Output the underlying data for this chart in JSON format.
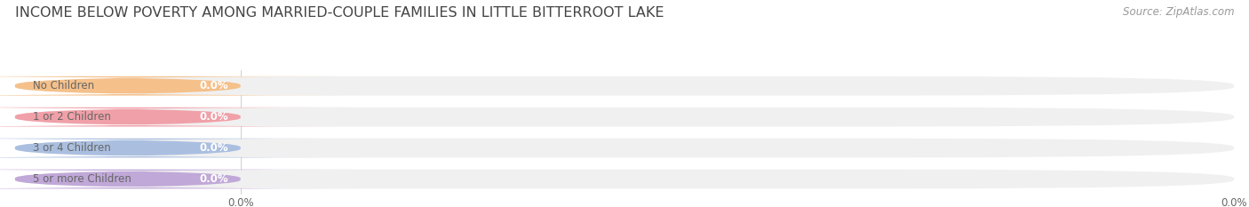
{
  "title": "INCOME BELOW POVERTY AMONG MARRIED-COUPLE FAMILIES IN LITTLE BITTERROOT LAKE",
  "source": "Source: ZipAtlas.com",
  "categories": [
    "No Children",
    "1 or 2 Children",
    "3 or 4 Children",
    "5 or more Children"
  ],
  "values": [
    0.0,
    0.0,
    0.0,
    0.0
  ],
  "bar_colors": [
    "#f5c08a",
    "#f0a0a8",
    "#aabfe0",
    "#c0a8d8"
  ],
  "bar_bg_color": "#f0f0f0",
  "text_color": "#666666",
  "title_color": "#444444",
  "source_color": "#999999",
  "value_label_color": "#ffffff",
  "background_color": "#ffffff",
  "bar_height": 0.62,
  "fig_width": 14.06,
  "fig_height": 2.33,
  "colored_portion": 0.185
}
